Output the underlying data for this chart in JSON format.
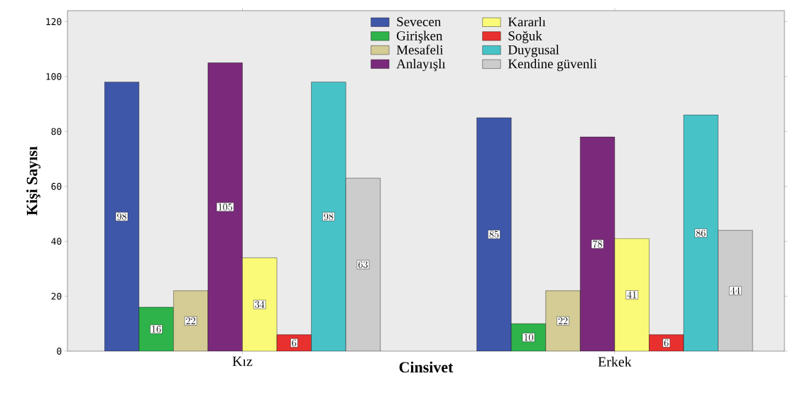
{
  "chart_data": {
    "type": "bar",
    "xlabel": "Cinsivet",
    "ylabel": "Kişi Sayısı",
    "categories": [
      "Kız",
      "Erkek"
    ],
    "series": [
      {
        "name": "Sevecen",
        "color": "#3f57a9",
        "values": [
          98,
          85
        ]
      },
      {
        "name": "Girişken",
        "color": "#2db34a",
        "values": [
          16,
          10
        ]
      },
      {
        "name": "Mesafeli",
        "color": "#d4cc94",
        "values": [
          22,
          22
        ]
      },
      {
        "name": "Anlayışlı",
        "color": "#7b2a7b",
        "values": [
          105,
          78
        ]
      },
      {
        "name": "Kararlı",
        "color": "#fafa78",
        "values": [
          34,
          41
        ]
      },
      {
        "name": "Soğuk",
        "color": "#e8302f",
        "values": [
          6,
          6
        ]
      },
      {
        "name": "Duygusal",
        "color": "#47c3c8",
        "values": [
          98,
          86
        ]
      },
      {
        "name": "Kendine güvenli",
        "color": "#cccccc",
        "values": [
          63,
          44
        ]
      }
    ],
    "ylim": [
      0,
      124
    ],
    "yticks": [
      0,
      20,
      40,
      60,
      80,
      100,
      120
    ],
    "data_labels": true,
    "legend": "top",
    "grid": false
  }
}
